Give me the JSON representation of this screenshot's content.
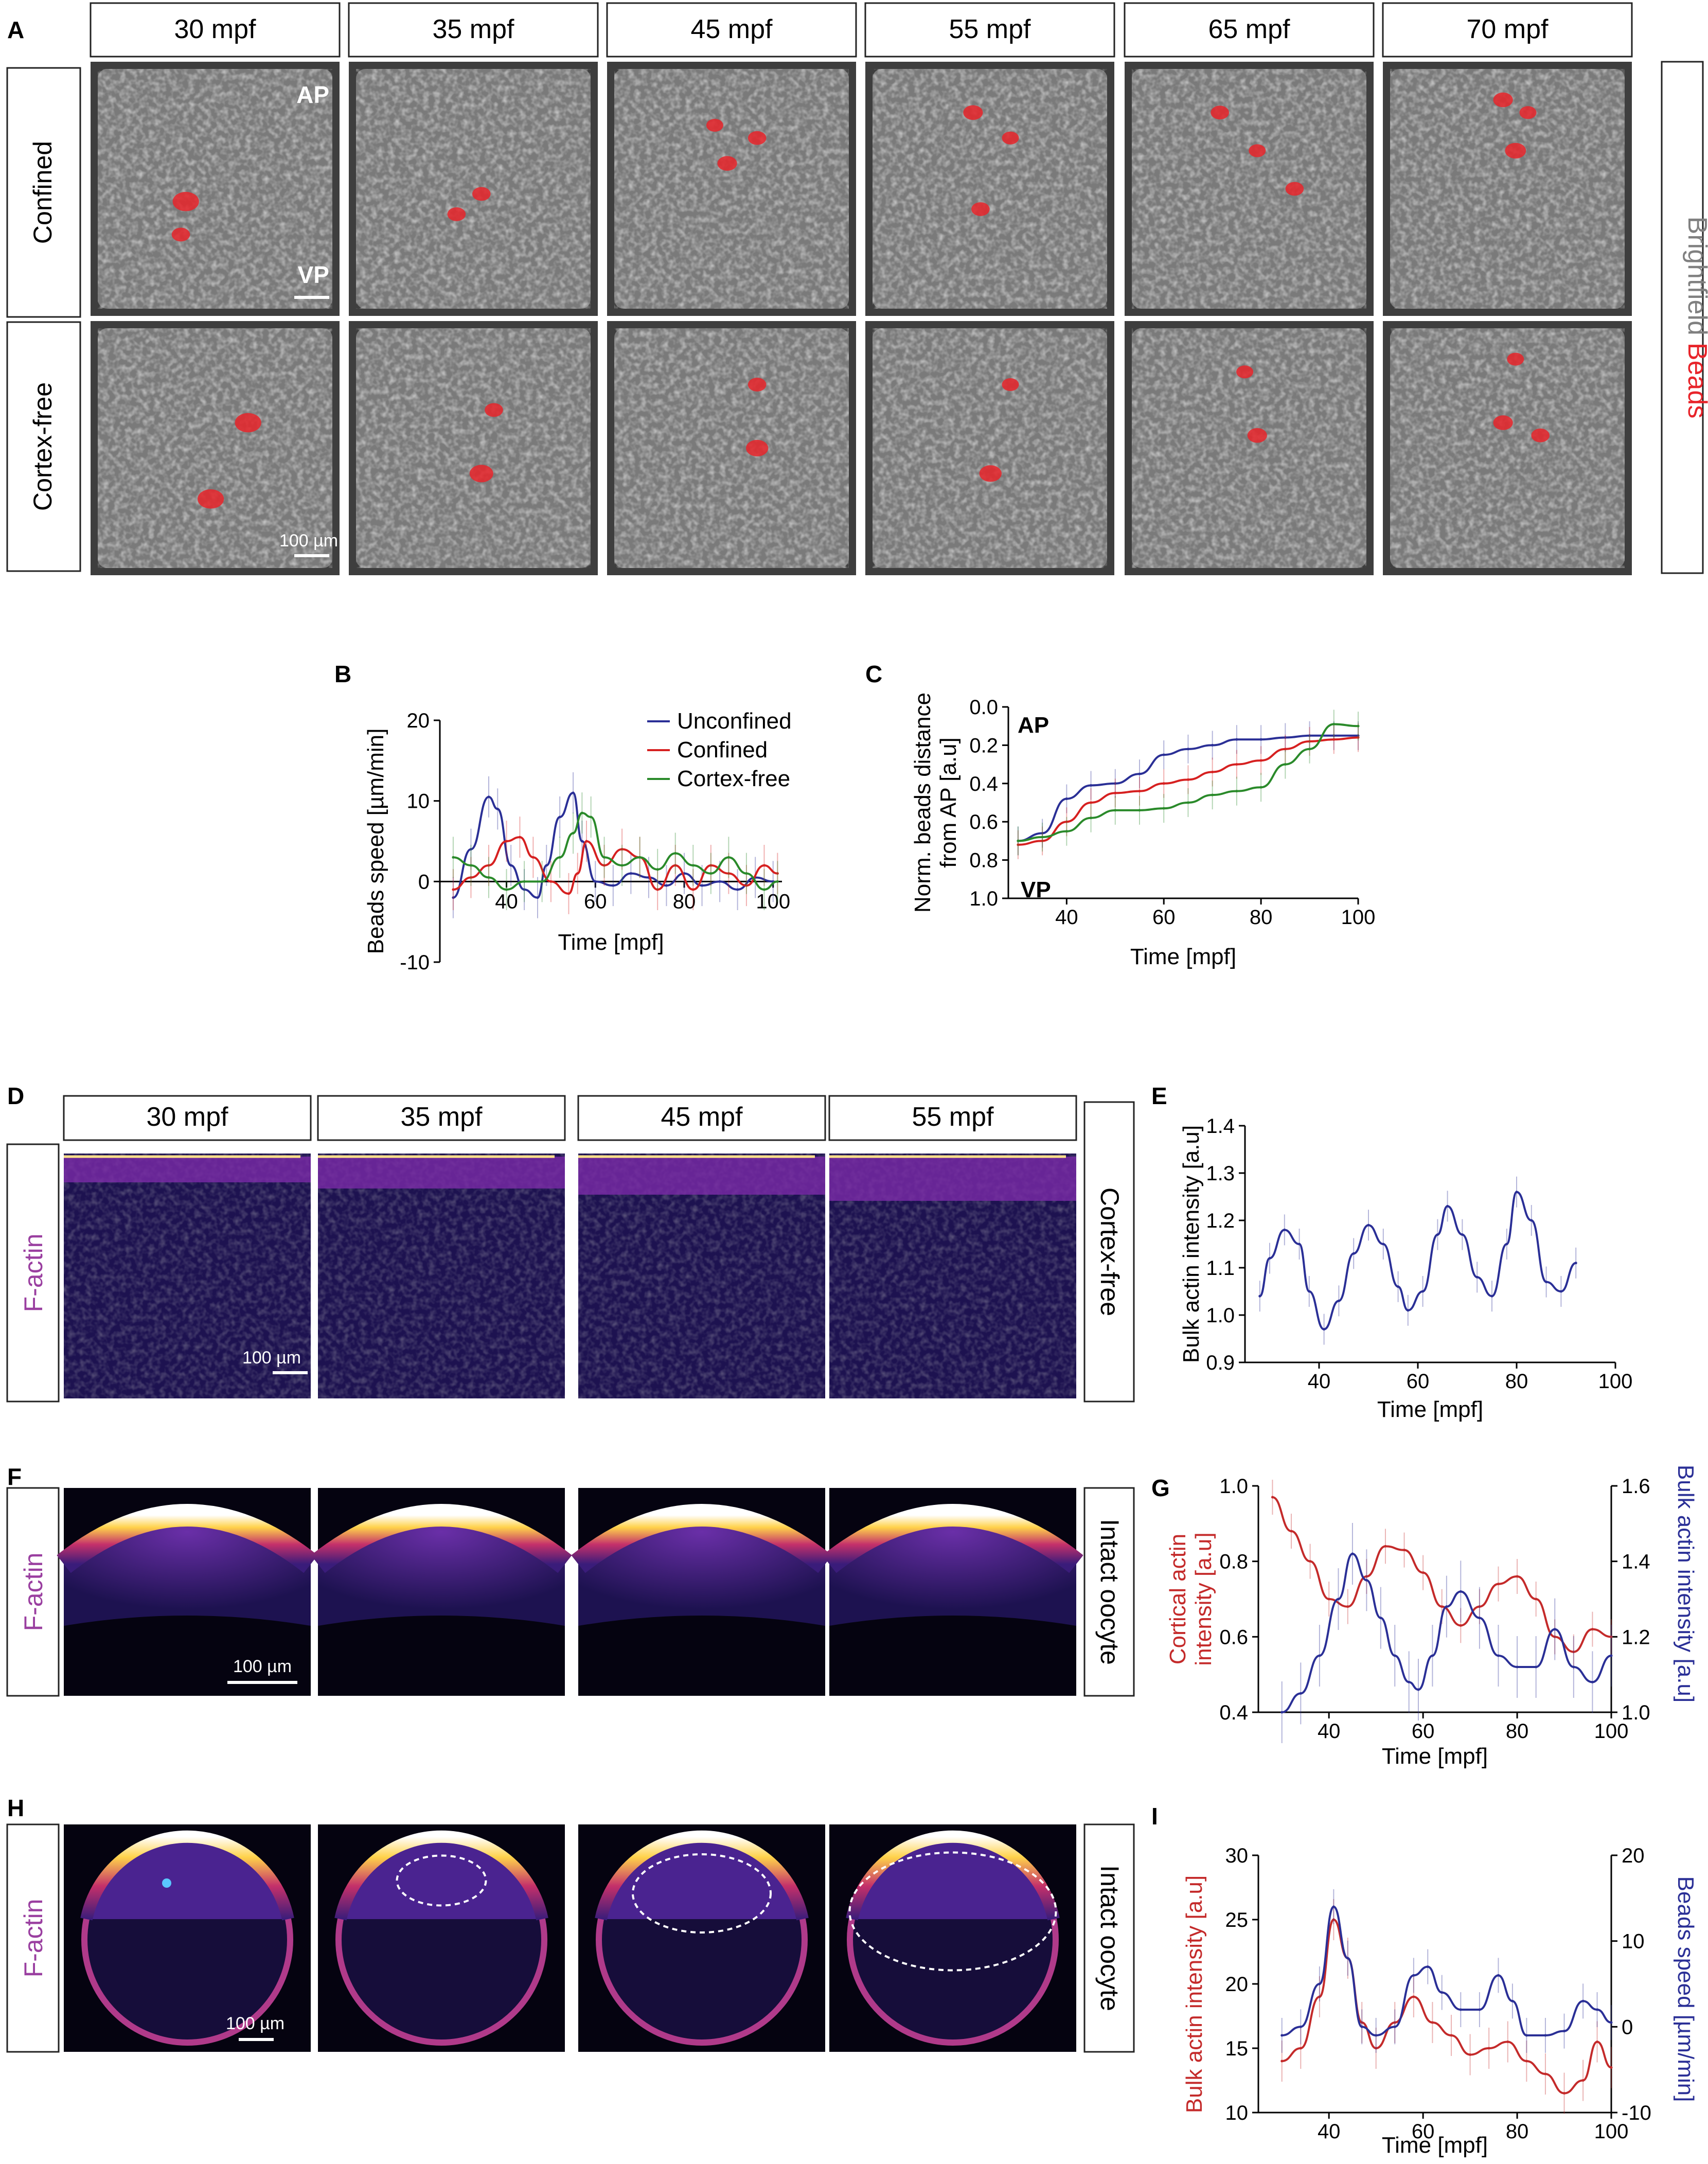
{
  "panel_letters": [
    "A",
    "B",
    "C",
    "D",
    "E",
    "F",
    "G",
    "H",
    "I"
  ],
  "panelA": {
    "times": [
      "30 mpf",
      "35 mpf",
      "45 mpf",
      "55 mpf",
      "65 mpf",
      "70 mpf"
    ],
    "rows": [
      "Confined",
      "Cortex-free"
    ],
    "side_label_1": "Brightfield",
    "side_label_2": "Beads",
    "ap_label": "AP",
    "vp_label": "VP",
    "scale": "100 µm",
    "colors": {
      "beads": "#e8242a",
      "brightfield_text": "#808080"
    }
  },
  "panelD": {
    "times": [
      "30 mpf",
      "35 mpf",
      "45 mpf",
      "55 mpf"
    ],
    "left_label": "F-actin",
    "right_label": "Cortex-free",
    "scale": "100 µm"
  },
  "panelF": {
    "left_label": "F-actin",
    "right_label": "Intact oocyte",
    "scale": "100 µm"
  },
  "panelH": {
    "left_label": "F-actin",
    "right_label": "Intact oocyte",
    "scale": "100 µm"
  },
  "chart_data": [
    {
      "panel": "B",
      "type": "line",
      "xlabel": "Time [mpf]",
      "ylabel": "Beads speed [µm/min]",
      "xlim": [
        25,
        102
      ],
      "ylim": [
        -10,
        20
      ],
      "xticks": [
        "40",
        "60",
        "80",
        "100"
      ],
      "yticks": [
        "-10",
        "0",
        "10",
        "20"
      ],
      "legend": "top-right",
      "series": [
        {
          "name": "Unconfined",
          "color": "#2a2f96",
          "x": [
            28,
            32,
            36,
            38,
            41,
            44,
            47,
            49,
            52,
            55,
            57,
            60,
            64,
            68,
            72,
            76,
            80,
            84,
            88,
            92,
            96,
            100
          ],
          "y": [
            -2,
            4,
            10.5,
            9,
            2,
            -1,
            -2,
            2,
            8,
            11,
            5,
            0,
            -0.5,
            1,
            0.5,
            -0.5,
            1,
            -0.5,
            0,
            -1,
            0.5,
            0
          ]
        },
        {
          "name": "Confined",
          "color": "#d62020",
          "x": [
            28,
            32,
            36,
            40,
            43,
            46,
            50,
            54,
            56,
            58,
            62,
            66,
            70,
            74,
            78,
            82,
            86,
            90,
            94,
            98,
            101
          ],
          "y": [
            -1,
            0.5,
            2,
            5,
            5.5,
            3,
            0,
            -1.5,
            1,
            5,
            2,
            4,
            3,
            -1,
            2,
            -1,
            2,
            1,
            -0.5,
            2,
            1
          ]
        },
        {
          "name": "Cortex-free",
          "color": "#2a8a2a",
          "x": [
            28,
            32,
            36,
            40,
            44,
            48,
            52,
            55,
            57,
            59,
            62,
            66,
            70,
            74,
            78,
            82,
            86,
            90,
            94,
            98,
            101
          ],
          "y": [
            3,
            2,
            0.5,
            -1,
            0,
            0,
            3,
            6,
            8.5,
            8,
            3,
            2,
            3,
            1.5,
            3.5,
            2,
            1,
            3,
            1,
            -1,
            0
          ]
        }
      ]
    },
    {
      "panel": "C",
      "type": "line",
      "xlabel": "Time [mpf]",
      "ylabel": "Norm. beads distance from AP [a.u]",
      "ylabel_lines": [
        "Norm. beads distance",
        "from AP [a.u]"
      ],
      "xlim": [
        28,
        100
      ],
      "ylim": [
        0,
        1
      ],
      "y_inverted": true,
      "xticks": [
        "40",
        "60",
        "80",
        "100"
      ],
      "yticks": [
        "0.0",
        "0.2",
        "0.4",
        "0.6",
        "0.8",
        "1.0"
      ],
      "annotations": [
        "AP",
        "VP"
      ],
      "series": [
        {
          "name": "Unconfined",
          "color": "#2a2f96",
          "x": [
            30,
            35,
            40,
            45,
            50,
            55,
            60,
            65,
            70,
            75,
            80,
            85,
            90,
            95,
            100
          ],
          "y": [
            0.7,
            0.66,
            0.48,
            0.41,
            0.4,
            0.35,
            0.25,
            0.22,
            0.2,
            0.17,
            0.17,
            0.16,
            0.15,
            0.15,
            0.15
          ]
        },
        {
          "name": "Confined",
          "color": "#d62020",
          "x": [
            30,
            35,
            40,
            45,
            50,
            55,
            60,
            65,
            70,
            75,
            80,
            85,
            90,
            95,
            100
          ],
          "y": [
            0.72,
            0.7,
            0.6,
            0.5,
            0.45,
            0.44,
            0.4,
            0.38,
            0.34,
            0.3,
            0.28,
            0.22,
            0.18,
            0.17,
            0.16
          ]
        },
        {
          "name": "Cortex-free",
          "color": "#2a8a2a",
          "x": [
            30,
            35,
            40,
            45,
            50,
            55,
            60,
            65,
            70,
            75,
            80,
            85,
            90,
            95,
            100
          ],
          "y": [
            0.7,
            0.68,
            0.65,
            0.58,
            0.54,
            0.54,
            0.53,
            0.5,
            0.46,
            0.44,
            0.42,
            0.3,
            0.22,
            0.09,
            0.1
          ]
        }
      ]
    },
    {
      "panel": "E",
      "type": "line",
      "xlabel": "Time [mpf]",
      "ylabel": "Bulk actin intensity [a.u]",
      "xlim": [
        25,
        100
      ],
      "ylim": [
        0.9,
        1.4
      ],
      "xticks": [
        "40",
        "60",
        "80",
        "100"
      ],
      "yticks": [
        "0.9",
        "1.0",
        "1.1",
        "1.2",
        "1.3",
        "1.4"
      ],
      "series": [
        {
          "name": "",
          "color": "#2a2f96",
          "x": [
            28,
            30,
            33,
            36,
            38,
            41,
            44,
            47,
            50,
            53,
            56,
            58,
            61,
            64,
            66,
            69,
            72,
            75,
            78,
            80,
            83,
            86,
            89,
            92
          ],
          "y": [
            1.04,
            1.12,
            1.18,
            1.15,
            1.05,
            0.97,
            1.03,
            1.13,
            1.19,
            1.15,
            1.06,
            1.01,
            1.05,
            1.17,
            1.23,
            1.17,
            1.08,
            1.04,
            1.15,
            1.26,
            1.2,
            1.07,
            1.05,
            1.11
          ]
        }
      ]
    },
    {
      "panel": "G",
      "type": "line",
      "xlabel": "Time [mpf]",
      "ylabel_left_lines": [
        "Cortical actin",
        "intensity [a.u]"
      ],
      "ylabel_right": "Bulk actin intensity [a.u]",
      "xlim": [
        25,
        100
      ],
      "ylim_left": [
        0.4,
        1.0
      ],
      "ylim_right": [
        1.0,
        1.6
      ],
      "xticks": [
        "40",
        "60",
        "80",
        "100"
      ],
      "yticks_left": [
        "0.4",
        "0.6",
        "0.8",
        "1.0"
      ],
      "yticks_right": [
        "1.0",
        "1.2",
        "1.4",
        "1.6"
      ],
      "series": [
        {
          "name": "Cortical actin",
          "color": "#c42a2a",
          "axis": "left",
          "x": [
            28,
            32,
            36,
            40,
            44,
            48,
            52,
            56,
            60,
            64,
            68,
            72,
            76,
            80,
            84,
            88,
            92,
            96,
            100
          ],
          "y": [
            0.97,
            0.88,
            0.8,
            0.7,
            0.68,
            0.76,
            0.84,
            0.83,
            0.77,
            0.68,
            0.63,
            0.68,
            0.74,
            0.76,
            0.7,
            0.6,
            0.56,
            0.62,
            0.6
          ]
        },
        {
          "name": "Bulk actin",
          "color": "#2a2f96",
          "axis": "right",
          "x": [
            30,
            34,
            38,
            42,
            45,
            48,
            51,
            54,
            57,
            59,
            62,
            65,
            68,
            72,
            76,
            80,
            84,
            88,
            92,
            96,
            100
          ],
          "y": [
            1.0,
            1.05,
            1.15,
            1.3,
            1.42,
            1.35,
            1.25,
            1.15,
            1.08,
            1.06,
            1.15,
            1.28,
            1.32,
            1.25,
            1.15,
            1.12,
            1.12,
            1.22,
            1.12,
            1.08,
            1.15
          ]
        }
      ]
    },
    {
      "panel": "I",
      "type": "line",
      "xlabel": "Time [mpf]",
      "ylabel_left": "Bulk actin intensity [a.u]",
      "ylabel_right": "Beads speed [µm/min]",
      "xlim": [
        25,
        100
      ],
      "ylim_left": [
        10,
        30
      ],
      "ylim_right": [
        -10,
        20
      ],
      "xticks": [
        "40",
        "60",
        "80",
        "100"
      ],
      "yticks_left": [
        "10",
        "15",
        "20",
        "25",
        "30"
      ],
      "yticks_right": [
        "-10",
        "0",
        "10",
        "20"
      ],
      "series": [
        {
          "name": "Bulk actin",
          "color": "#c42a2a",
          "axis": "left",
          "x": [
            30,
            34,
            38,
            41,
            44,
            47,
            50,
            54,
            58,
            62,
            66,
            70,
            74,
            78,
            82,
            86,
            90,
            94,
            97,
            100
          ],
          "y": [
            14,
            15,
            19,
            25,
            22,
            17,
            15,
            17,
            19,
            17,
            16,
            14.5,
            15,
            15.5,
            14,
            13,
            11.5,
            12.5,
            15.5,
            13.5
          ]
        },
        {
          "name": "Beads speed",
          "color": "#2a2f96",
          "axis": "right",
          "x": [
            30,
            34,
            38,
            41,
            44,
            47,
            50,
            54,
            58,
            61,
            64,
            68,
            72,
            76,
            79,
            82,
            86,
            90,
            94,
            97,
            100
          ],
          "y": [
            -1,
            0,
            5,
            14,
            8,
            0,
            -1,
            0,
            6,
            7,
            4,
            2,
            2,
            6,
            3,
            -1,
            -1,
            -0.5,
            3,
            2,
            0.5
          ]
        }
      ]
    }
  ]
}
